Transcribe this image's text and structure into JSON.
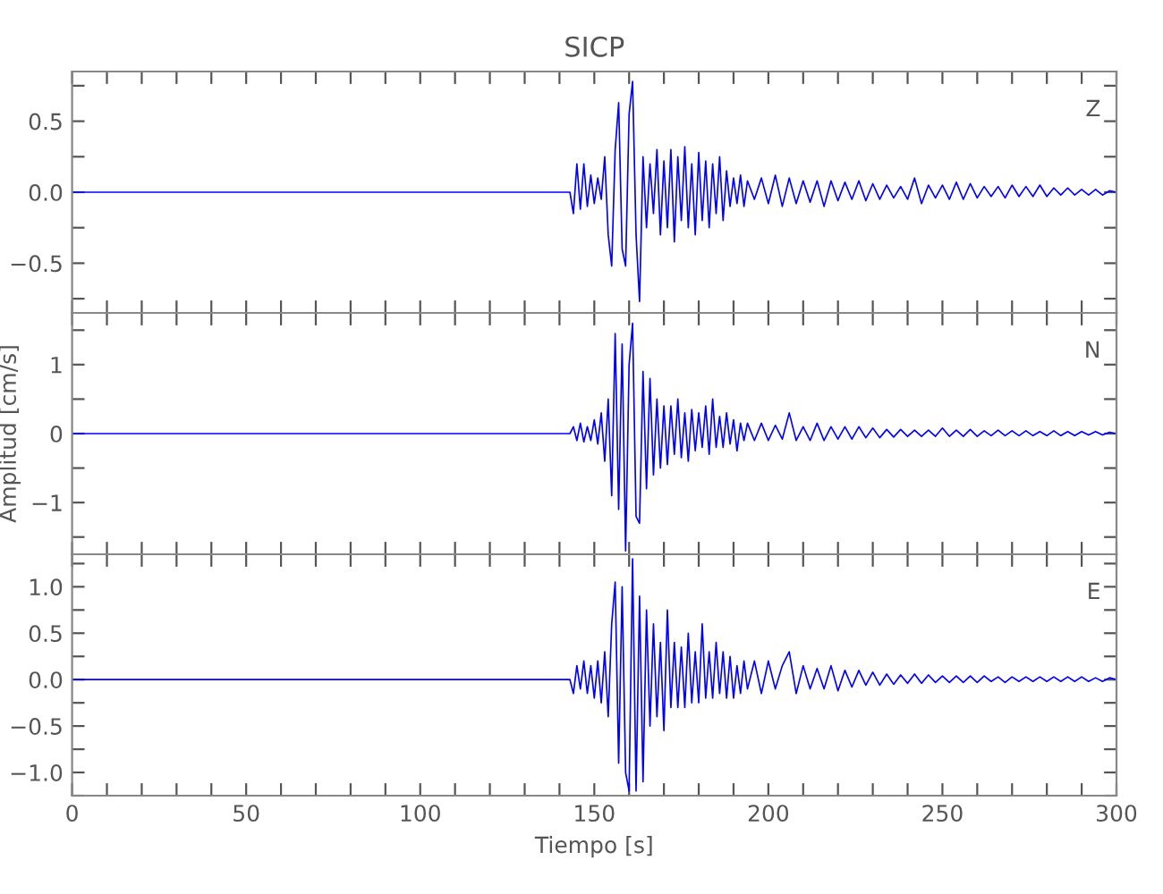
{
  "chart_data": [
    {
      "type": "line",
      "title": "SICP",
      "annotations": [
        "Z"
      ],
      "tick_labels": "y",
      "grid": false,
      "legend": false,
      "x": [
        0,
        50,
        100,
        143,
        144,
        145,
        146,
        147,
        148,
        149,
        150,
        151,
        152,
        153,
        154,
        155,
        156,
        157,
        158,
        159,
        160,
        161,
        162,
        163,
        164,
        165,
        166,
        167,
        168,
        169,
        170,
        171,
        172,
        173,
        174,
        175,
        176,
        177,
        178,
        179,
        180,
        181,
        182,
        183,
        184,
        185,
        186,
        187,
        188,
        189,
        190,
        191,
        192,
        193,
        194,
        196,
        198,
        200,
        202,
        204,
        206,
        208,
        210,
        212,
        214,
        216,
        218,
        220,
        222,
        224,
        226,
        228,
        230,
        232,
        234,
        236,
        238,
        240,
        242,
        244,
        246,
        248,
        250,
        252,
        254,
        256,
        258,
        260,
        262,
        264,
        266,
        268,
        270,
        272,
        274,
        276,
        278,
        280,
        282,
        284,
        286,
        288,
        290,
        292,
        294,
        296,
        298,
        300
      ],
      "series": [
        {
          "color": "#0000ff",
          "values": [
            0,
            0,
            0,
            0,
            -0.15,
            0.2,
            -0.12,
            0.2,
            -0.1,
            0.12,
            -0.08,
            0.1,
            -0.05,
            0.25,
            -0.3,
            -0.52,
            0.3,
            0.63,
            -0.4,
            -0.52,
            0.55,
            0.78,
            -0.3,
            -0.77,
            0.25,
            -0.25,
            0.2,
            -0.15,
            0.3,
            -0.3,
            0.22,
            -0.25,
            0.3,
            -0.35,
            0.25,
            -0.2,
            0.32,
            -0.25,
            0.2,
            -0.3,
            0.28,
            -0.2,
            0.22,
            -0.25,
            0.2,
            -0.15,
            0.25,
            -0.2,
            0.15,
            -0.1,
            0.1,
            -0.08,
            0.12,
            -0.1,
            0.08,
            -0.05,
            0.1,
            -0.08,
            0.12,
            -0.1,
            0.1,
            -0.08,
            0.08,
            -0.07,
            0.08,
            -0.1,
            0.08,
            -0.06,
            0.07,
            -0.05,
            0.08,
            -0.06,
            0.06,
            -0.05,
            0.05,
            -0.04,
            0.04,
            -0.05,
            0.1,
            -0.08,
            0.05,
            -0.04,
            0.05,
            -0.05,
            0.07,
            -0.05,
            0.06,
            -0.04,
            0.04,
            -0.03,
            0.04,
            -0.04,
            0.05,
            -0.03,
            0.04,
            -0.03,
            0.05,
            -0.03,
            0.03,
            -0.02,
            0.03,
            -0.02,
            0.02,
            -0.02,
            0.02,
            -0.02,
            0.01,
            0
          ]
        }
      ],
      "xlim": [
        0,
        300
      ],
      "xticks": [
        {
          "value": 0,
          "label": null
        },
        {
          "value": 10,
          "label": null
        },
        {
          "value": 20,
          "label": null
        },
        {
          "value": 30,
          "label": null
        },
        {
          "value": 40,
          "label": null
        },
        {
          "value": 50,
          "label": null
        },
        {
          "value": 60,
          "label": null
        },
        {
          "value": 70,
          "label": null
        },
        {
          "value": 80,
          "label": null
        },
        {
          "value": 90,
          "label": null
        },
        {
          "value": 100,
          "label": null
        },
        {
          "value": 110,
          "label": null
        },
        {
          "value": 120,
          "label": null
        },
        {
          "value": 130,
          "label": null
        },
        {
          "value": 140,
          "label": null
        },
        {
          "value": 150,
          "label": null
        },
        {
          "value": 160,
          "label": null
        },
        {
          "value": 170,
          "label": null
        },
        {
          "value": 180,
          "label": null
        },
        {
          "value": 190,
          "label": null
        },
        {
          "value": 200,
          "label": null
        },
        {
          "value": 210,
          "label": null
        },
        {
          "value": 220,
          "label": null
        },
        {
          "value": 230,
          "label": null
        },
        {
          "value": 240,
          "label": null
        },
        {
          "value": 250,
          "label": null
        },
        {
          "value": 260,
          "label": null
        },
        {
          "value": 270,
          "label": null
        },
        {
          "value": 280,
          "label": null
        },
        {
          "value": 290,
          "label": null
        },
        {
          "value": 300,
          "label": null
        }
      ],
      "ylim": [
        -0.85,
        0.85
      ],
      "yticks": [
        {
          "value": -0.75,
          "label": null
        },
        {
          "value": -0.5,
          "label": "−0.5"
        },
        {
          "value": -0.25,
          "label": null
        },
        {
          "value": 0,
          "label": "0.0"
        },
        {
          "value": 0.25,
          "label": null
        },
        {
          "value": 0.5,
          "label": "0.5"
        },
        {
          "value": 0.75,
          "label": null
        }
      ]
    },
    {
      "type": "line",
      "ylabel": "Amplitud [cm/s]",
      "annotations": [
        "N"
      ],
      "tick_labels": "y",
      "grid": false,
      "legend": false,
      "x": [
        0,
        50,
        100,
        143,
        144,
        145,
        146,
        147,
        148,
        149,
        150,
        151,
        152,
        153,
        154,
        155,
        156,
        157,
        158,
        159,
        160,
        161,
        162,
        163,
        164,
        165,
        166,
        167,
        168,
        169,
        170,
        171,
        172,
        173,
        174,
        175,
        176,
        177,
        178,
        179,
        180,
        181,
        182,
        183,
        184,
        185,
        186,
        187,
        188,
        189,
        190,
        191,
        192,
        193,
        194,
        196,
        198,
        200,
        202,
        204,
        206,
        208,
        210,
        212,
        214,
        216,
        218,
        220,
        222,
        224,
        226,
        228,
        230,
        232,
        234,
        236,
        238,
        240,
        242,
        244,
        246,
        248,
        250,
        252,
        254,
        256,
        258,
        260,
        262,
        264,
        266,
        268,
        270,
        272,
        274,
        276,
        278,
        280,
        282,
        284,
        286,
        288,
        290,
        292,
        294,
        296,
        298,
        300
      ],
      "series": [
        {
          "color": "#0000ff",
          "values": [
            0,
            0,
            0,
            0,
            0.1,
            -0.1,
            0.15,
            -0.12,
            0.1,
            -0.1,
            0.2,
            -0.15,
            0.3,
            -0.4,
            0.5,
            -0.9,
            1.45,
            -1.1,
            1.3,
            -1.7,
            1.0,
            1.6,
            -1.2,
            -1.3,
            0.9,
            -0.8,
            0.8,
            -0.6,
            0.5,
            -0.5,
            0.4,
            -0.45,
            0.4,
            -0.3,
            0.5,
            -0.35,
            0.3,
            -0.4,
            0.35,
            -0.25,
            0.3,
            -0.2,
            0.4,
            -0.3,
            0.5,
            -0.2,
            0.25,
            -0.2,
            0.3,
            -0.15,
            0.2,
            -0.25,
            0.15,
            -0.1,
            0.15,
            -0.1,
            0.15,
            -0.1,
            0.12,
            -0.08,
            0.3,
            -0.1,
            0.1,
            -0.1,
            0.15,
            -0.1,
            0.1,
            -0.08,
            0.1,
            -0.08,
            0.1,
            -0.06,
            0.08,
            -0.06,
            0.06,
            -0.05,
            0.06,
            -0.04,
            0.05,
            -0.04,
            0.05,
            -0.04,
            0.08,
            -0.04,
            0.05,
            -0.04,
            0.06,
            -0.04,
            0.04,
            -0.03,
            0.05,
            -0.03,
            0.04,
            -0.03,
            0.04,
            -0.03,
            0.03,
            -0.03,
            0.04,
            -0.03,
            0.03,
            -0.03,
            0.03,
            -0.02,
            0.03,
            -0.02,
            0.02,
            0
          ]
        }
      ],
      "xlim": [
        0,
        300
      ],
      "xticks": [
        {
          "value": 0,
          "label": null
        },
        {
          "value": 10,
          "label": null
        },
        {
          "value": 20,
          "label": null
        },
        {
          "value": 30,
          "label": null
        },
        {
          "value": 40,
          "label": null
        },
        {
          "value": 50,
          "label": null
        },
        {
          "value": 60,
          "label": null
        },
        {
          "value": 70,
          "label": null
        },
        {
          "value": 80,
          "label": null
        },
        {
          "value": 90,
          "label": null
        },
        {
          "value": 100,
          "label": null
        },
        {
          "value": 110,
          "label": null
        },
        {
          "value": 120,
          "label": null
        },
        {
          "value": 130,
          "label": null
        },
        {
          "value": 140,
          "label": null
        },
        {
          "value": 150,
          "label": null
        },
        {
          "value": 160,
          "label": null
        },
        {
          "value": 170,
          "label": null
        },
        {
          "value": 180,
          "label": null
        },
        {
          "value": 190,
          "label": null
        },
        {
          "value": 200,
          "label": null
        },
        {
          "value": 210,
          "label": null
        },
        {
          "value": 220,
          "label": null
        },
        {
          "value": 230,
          "label": null
        },
        {
          "value": 240,
          "label": null
        },
        {
          "value": 250,
          "label": null
        },
        {
          "value": 260,
          "label": null
        },
        {
          "value": 270,
          "label": null
        },
        {
          "value": 280,
          "label": null
        },
        {
          "value": 290,
          "label": null
        },
        {
          "value": 300,
          "label": null
        }
      ],
      "ylim": [
        -1.75,
        1.75
      ],
      "yticks": [
        {
          "value": -1.5,
          "label": null
        },
        {
          "value": -1,
          "label": "−1"
        },
        {
          "value": -0.5,
          "label": null
        },
        0,
        {
          "value": 0.5,
          "label": null
        },
        1,
        {
          "value": 1.5,
          "label": null
        }
      ]
    },
    {
      "type": "line",
      "xlabel": "Tiempo [s]",
      "annotations": [
        "E"
      ],
      "grid": false,
      "legend": false,
      "x": [
        0,
        50,
        100,
        143,
        144,
        145,
        146,
        147,
        148,
        149,
        150,
        151,
        152,
        153,
        154,
        155,
        156,
        157,
        158,
        159,
        160,
        161,
        162,
        163,
        164,
        165,
        166,
        167,
        168,
        169,
        170,
        171,
        172,
        173,
        174,
        175,
        176,
        177,
        178,
        179,
        180,
        181,
        182,
        183,
        184,
        185,
        186,
        187,
        188,
        189,
        190,
        191,
        192,
        193,
        194,
        196,
        198,
        200,
        202,
        204,
        206,
        208,
        210,
        212,
        214,
        216,
        218,
        220,
        222,
        224,
        226,
        228,
        230,
        232,
        234,
        236,
        238,
        240,
        242,
        244,
        246,
        248,
        250,
        252,
        254,
        256,
        258,
        260,
        262,
        264,
        266,
        268,
        270,
        272,
        274,
        276,
        278,
        280,
        282,
        284,
        286,
        288,
        290,
        292,
        294,
        296,
        298,
        300
      ],
      "series": [
        {
          "color": "#0000ff",
          "values": [
            0,
            0,
            0,
            0,
            -0.15,
            0.15,
            -0.1,
            0.2,
            -0.15,
            0.15,
            -0.2,
            0.2,
            -0.25,
            0.3,
            -0.4,
            0.6,
            1.05,
            -0.9,
            1.0,
            -1.0,
            -1.2,
            1.3,
            -1.2,
            0.9,
            -1.1,
            0.75,
            -0.5,
            0.6,
            -0.4,
            0.4,
            -0.55,
            0.75,
            -0.3,
            0.4,
            -0.3,
            0.35,
            -0.3,
            0.5,
            -0.25,
            0.3,
            -0.25,
            0.6,
            -0.2,
            0.3,
            -0.2,
            0.4,
            -0.15,
            0.3,
            -0.2,
            0.25,
            -0.2,
            0.15,
            -0.15,
            0.2,
            -0.1,
            0.2,
            -0.15,
            0.2,
            -0.1,
            0.15,
            0.3,
            -0.15,
            0.15,
            -0.1,
            0.12,
            -0.1,
            0.15,
            -0.12,
            0.1,
            -0.08,
            0.1,
            -0.06,
            0.08,
            -0.06,
            0.06,
            -0.05,
            0.05,
            -0.04,
            0.06,
            -0.04,
            0.05,
            -0.03,
            0.04,
            -0.03,
            0.04,
            -0.03,
            0.04,
            -0.03,
            0.04,
            -0.02,
            0.03,
            -0.03,
            0.03,
            -0.02,
            0.03,
            -0.02,
            0.03,
            -0.02,
            0.03,
            -0.02,
            0.03,
            -0.02,
            0.03,
            -0.02,
            0.02,
            -0.02,
            0.02,
            0
          ]
        }
      ],
      "xlim": [
        0,
        300
      ],
      "xticks": [
        0,
        {
          "value": 10,
          "label": null
        },
        {
          "value": 20,
          "label": null
        },
        {
          "value": 30,
          "label": null
        },
        {
          "value": 40,
          "label": null
        },
        50,
        {
          "value": 60,
          "label": null
        },
        {
          "value": 70,
          "label": null
        },
        {
          "value": 80,
          "label": null
        },
        {
          "value": 90,
          "label": null
        },
        100,
        {
          "value": 110,
          "label": null
        },
        {
          "value": 120,
          "label": null
        },
        {
          "value": 130,
          "label": null
        },
        {
          "value": 140,
          "label": null
        },
        150,
        {
          "value": 160,
          "label": null
        },
        {
          "value": 170,
          "label": null
        },
        {
          "value": 180,
          "label": null
        },
        {
          "value": 190,
          "label": null
        },
        200,
        {
          "value": 210,
          "label": null
        },
        {
          "value": 220,
          "label": null
        },
        {
          "value": 230,
          "label": null
        },
        {
          "value": 240,
          "label": null
        },
        250,
        {
          "value": 260,
          "label": null
        },
        {
          "value": 270,
          "label": null
        },
        {
          "value": 280,
          "label": null
        },
        {
          "value": 290,
          "label": null
        },
        300
      ],
      "ylim": [
        -1.25,
        1.35
      ],
      "yticks": [
        {
          "value": -1.25,
          "label": null
        },
        {
          "value": -1,
          "label": "−1.0"
        },
        {
          "value": -0.75,
          "label": null
        },
        {
          "value": -0.5,
          "label": "−0.5"
        },
        {
          "value": -0.25,
          "label": null
        },
        {
          "value": 0,
          "label": "0.0"
        },
        {
          "value": 0.25,
          "label": null
        },
        {
          "value": 0.5,
          "label": "0.5"
        },
        {
          "value": 0.75,
          "label": null
        },
        {
          "value": 1,
          "label": "1.0"
        },
        {
          "value": 1.25,
          "label": null
        }
      ]
    }
  ]
}
